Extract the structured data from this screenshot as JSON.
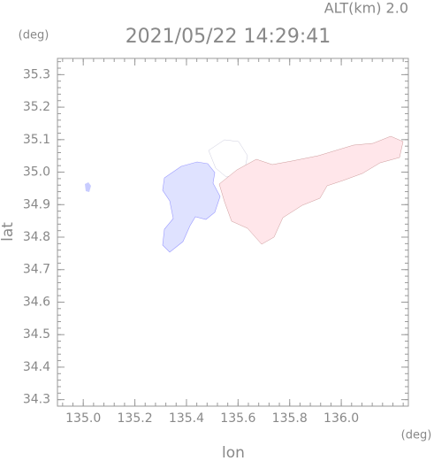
{
  "chart_data": {
    "type": "map",
    "altitude_label": "ALT(km) 2.0",
    "title": "2021/05/22 14:29:41",
    "y_unit": "(deg)",
    "x_unit": "(deg)",
    "ylabel": "lat",
    "xlabel": "lon",
    "xlim": [
      134.9,
      136.26
    ],
    "ylim": [
      34.28,
      35.35
    ],
    "xticks": [
      {
        "value": 135.0,
        "label": "135.0"
      },
      135.2,
      135.4,
      135.6,
      135.8,
      {
        "value": 136.0,
        "label": "136.0"
      }
    ],
    "yticks": [
      34.3,
      34.4,
      34.5,
      34.6,
      34.7,
      34.8,
      34.9,
      {
        "value": 35.0,
        "label": "35.0"
      },
      35.1,
      35.2,
      35.3
    ]
  }
}
